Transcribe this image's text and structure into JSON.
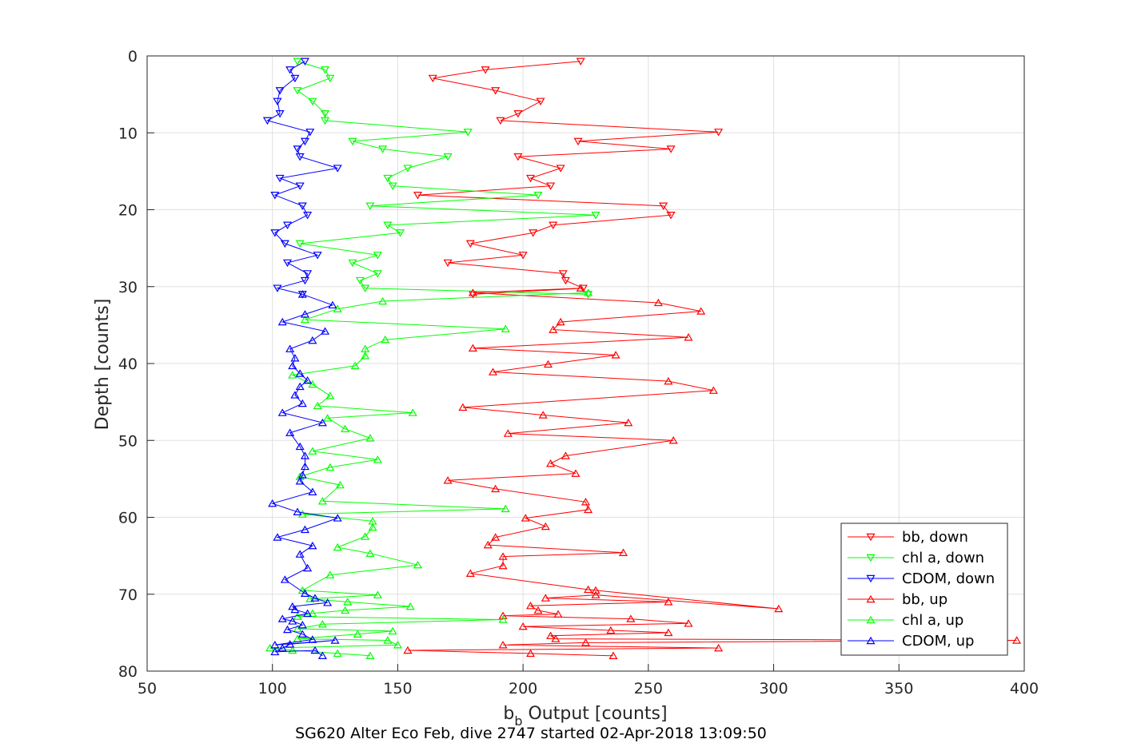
{
  "chart_data": {
    "type": "line",
    "xlabel_main": "b",
    "xlabel_sub": "b",
    "xlabel_rest": " Output [counts]",
    "ylabel": "Depth [counts]",
    "caption": "SG620 Alter Eco Feb, dive 2747 started 02-Apr-2018 13:09:50",
    "xlim": [
      50,
      400
    ],
    "ylim": [
      0,
      80
    ],
    "y_reversed": true,
    "grid": true,
    "x_ticks": [
      "50",
      "100",
      "150",
      "200",
      "250",
      "300",
      "350",
      "400"
    ],
    "y_ticks": [
      "0",
      "10",
      "20",
      "30",
      "40",
      "50",
      "60",
      "70",
      "80"
    ],
    "legend_position": "bottom-right",
    "colors": {
      "bb": "#ff0000",
      "chl": "#00ff00",
      "cdom": "#0000ff"
    },
    "series": [
      {
        "name": "bb, down",
        "color": "#ff0000",
        "marker": "triangle-down",
        "points": [
          [
            223,
            0.7
          ],
          [
            185,
            1.8
          ],
          [
            164,
            2.9
          ],
          [
            189,
            4.5
          ],
          [
            207,
            5.9
          ],
          [
            198,
            7.5
          ],
          [
            191,
            8.4
          ],
          [
            278,
            9.9
          ],
          [
            222,
            11.1
          ],
          [
            259,
            12.1
          ],
          [
            198,
            13.1
          ],
          [
            215,
            14.6
          ],
          [
            203,
            15.9
          ],
          [
            211,
            16.9
          ],
          [
            158,
            18.1
          ],
          [
            256,
            19.5
          ],
          [
            259,
            20.7
          ],
          [
            212,
            22.0
          ],
          [
            204,
            23.0
          ],
          [
            179,
            24.4
          ],
          [
            200,
            25.9
          ],
          [
            170,
            26.9
          ],
          [
            216,
            28.3
          ],
          [
            217,
            29.2
          ],
          [
            224,
            30.2
          ],
          [
            180,
            31.0
          ]
        ]
      },
      {
        "name": "chl a, down",
        "color": "#00ff00",
        "marker": "triangle-down",
        "points": [
          [
            110,
            0.7
          ],
          [
            121,
            1.8
          ],
          [
            123,
            2.9
          ],
          [
            110,
            4.5
          ],
          [
            116,
            5.9
          ],
          [
            121,
            7.5
          ],
          [
            121,
            8.4
          ],
          [
            178,
            9.9
          ],
          [
            132,
            11.1
          ],
          [
            144,
            12.1
          ],
          [
            170,
            13.1
          ],
          [
            154,
            14.6
          ],
          [
            146,
            15.9
          ],
          [
            148,
            16.9
          ],
          [
            206,
            18.1
          ],
          [
            139,
            19.5
          ],
          [
            229,
            20.7
          ],
          [
            146,
            22.0
          ],
          [
            151,
            23.0
          ],
          [
            111,
            24.4
          ],
          [
            142,
            25.9
          ],
          [
            132,
            26.9
          ],
          [
            142,
            28.3
          ],
          [
            135,
            29.2
          ],
          [
            137,
            30.2
          ],
          [
            226,
            31.0
          ]
        ]
      },
      {
        "name": "CDOM, down",
        "color": "#0000ff",
        "marker": "triangle-down",
        "points": [
          [
            113,
            0.7
          ],
          [
            107,
            1.8
          ],
          [
            109,
            2.9
          ],
          [
            103,
            4.5
          ],
          [
            102,
            5.9
          ],
          [
            103,
            7.5
          ],
          [
            98,
            8.4
          ],
          [
            115,
            9.9
          ],
          [
            113,
            11.1
          ],
          [
            110,
            12.1
          ],
          [
            111,
            13.1
          ],
          [
            126,
            14.6
          ],
          [
            103,
            15.9
          ],
          [
            111,
            16.9
          ],
          [
            101,
            18.1
          ],
          [
            112,
            19.5
          ],
          [
            114,
            20.7
          ],
          [
            106,
            22.0
          ],
          [
            101,
            23.0
          ],
          [
            105,
            24.4
          ],
          [
            118,
            25.9
          ],
          [
            106,
            26.9
          ],
          [
            114,
            28.3
          ],
          [
            113,
            29.2
          ],
          [
            102,
            30.2
          ],
          [
            112,
            31.0
          ]
        ]
      },
      {
        "name": "bb, up",
        "color": "#ff0000",
        "marker": "triangle-up",
        "points": [
          [
            236,
            78.0
          ],
          [
            203,
            77.7
          ],
          [
            154,
            77.3
          ],
          [
            278,
            77.0
          ],
          [
            192,
            76.6
          ],
          [
            225,
            76.3
          ],
          [
            397,
            76.0
          ],
          [
            213,
            75.8
          ],
          [
            211,
            75.4
          ],
          [
            258,
            75.0
          ],
          [
            235,
            74.7
          ],
          [
            200,
            74.2
          ],
          [
            266,
            73.8
          ],
          [
            243,
            73.2
          ],
          [
            192,
            72.8
          ],
          [
            214,
            72.6
          ],
          [
            206,
            72.1
          ],
          [
            203,
            71.5
          ],
          [
            258,
            71.0
          ],
          [
            209,
            70.5
          ],
          [
            229,
            70.1
          ],
          [
            302,
            71.9
          ],
          [
            229,
            69.5
          ],
          [
            226,
            69.4
          ],
          [
            179,
            67.3
          ],
          [
            192,
            66.3
          ],
          [
            192,
            65.1
          ],
          [
            240,
            64.6
          ],
          [
            186,
            63.6
          ],
          [
            189,
            62.6
          ],
          [
            209,
            61.2
          ],
          [
            201,
            60.1
          ],
          [
            226,
            59.0
          ],
          [
            225,
            58.0
          ],
          [
            189,
            56.3
          ],
          [
            170,
            55.2
          ],
          [
            221,
            54.3
          ],
          [
            211,
            53.0
          ],
          [
            217,
            52.0
          ],
          [
            260,
            50.0
          ],
          [
            194,
            49.1
          ],
          [
            242,
            47.7
          ],
          [
            208,
            46.7
          ],
          [
            176,
            45.7
          ],
          [
            276,
            43.5
          ],
          [
            258,
            42.3
          ],
          [
            188,
            41.1
          ],
          [
            210,
            40.1
          ],
          [
            237,
            38.9
          ],
          [
            180,
            38.0
          ],
          [
            266,
            36.6
          ],
          [
            212,
            35.6
          ],
          [
            215,
            34.6
          ],
          [
            271,
            33.2
          ],
          [
            254,
            32.1
          ],
          [
            180,
            30.8
          ],
          [
            223,
            30.2
          ]
        ]
      },
      {
        "name": "chl a, up",
        "color": "#00ff00",
        "marker": "triangle-up",
        "points": [
          [
            139,
            78.0
          ],
          [
            126,
            77.7
          ],
          [
            108,
            77.3
          ],
          [
            99,
            77.0
          ],
          [
            150,
            76.6
          ],
          [
            146,
            76.0
          ],
          [
            110,
            75.8
          ],
          [
            134,
            75.2
          ],
          [
            148,
            74.8
          ],
          [
            110,
            74.5
          ],
          [
            120,
            73.9
          ],
          [
            192,
            73.3
          ],
          [
            110,
            72.9
          ],
          [
            116,
            72.5
          ],
          [
            129,
            72.1
          ],
          [
            155,
            71.6
          ],
          [
            130,
            71.0
          ],
          [
            115,
            70.6
          ],
          [
            142,
            70.1
          ],
          [
            112,
            69.5
          ],
          [
            123,
            67.5
          ],
          [
            158,
            66.2
          ],
          [
            139,
            64.7
          ],
          [
            126,
            63.9
          ],
          [
            137,
            62.5
          ],
          [
            140,
            61.3
          ],
          [
            140,
            60.5
          ],
          [
            112,
            59.6
          ],
          [
            193,
            58.9
          ],
          [
            120,
            57.9
          ],
          [
            127,
            55.8
          ],
          [
            111,
            54.7
          ],
          [
            123,
            53.5
          ],
          [
            142,
            52.5
          ],
          [
            116,
            51.4
          ],
          [
            139,
            49.7
          ],
          [
            129,
            48.5
          ],
          [
            122,
            47.1
          ],
          [
            156,
            46.4
          ],
          [
            118,
            45.5
          ],
          [
            123,
            44.2
          ],
          [
            116,
            42.7
          ],
          [
            108,
            41.5
          ],
          [
            133,
            40.3
          ],
          [
            137,
            39.0
          ],
          [
            137,
            38.1
          ],
          [
            145,
            36.9
          ],
          [
            193,
            35.5
          ],
          [
            113,
            34.3
          ],
          [
            126,
            32.9
          ],
          [
            144,
            31.9
          ],
          [
            226,
            30.8
          ]
        ]
      },
      {
        "name": "CDOM, up",
        "color": "#0000ff",
        "marker": "triangle-up",
        "points": [
          [
            120,
            78.0
          ],
          [
            117,
            77.3
          ],
          [
            101,
            77.5
          ],
          [
            104,
            77.0
          ],
          [
            107,
            76.5
          ],
          [
            125,
            76.0
          ],
          [
            101,
            76.6
          ],
          [
            116,
            75.9
          ],
          [
            112,
            75.2
          ],
          [
            106,
            74.6
          ],
          [
            112,
            74.0
          ],
          [
            108,
            73.5
          ],
          [
            104,
            73.2
          ],
          [
            114,
            72.5
          ],
          [
            109,
            72.0
          ],
          [
            108,
            71.6
          ],
          [
            122,
            71.1
          ],
          [
            117,
            70.5
          ],
          [
            113,
            69.9
          ],
          [
            105,
            68.1
          ],
          [
            114,
            66.6
          ],
          [
            111,
            64.8
          ],
          [
            116,
            63.7
          ],
          [
            102,
            62.6
          ],
          [
            113,
            61.6
          ],
          [
            126,
            60.1
          ],
          [
            110,
            59.3
          ],
          [
            100,
            58.2
          ],
          [
            116,
            56.7
          ],
          [
            111,
            55.3
          ],
          [
            112,
            54.5
          ],
          [
            113,
            53.4
          ],
          [
            113,
            52.0
          ],
          [
            111,
            50.8
          ],
          [
            107,
            49.0
          ],
          [
            120,
            47.7
          ],
          [
            104,
            46.4
          ],
          [
            112,
            45.2
          ],
          [
            109,
            44.1
          ],
          [
            111,
            43.0
          ],
          [
            114,
            42.2
          ],
          [
            111,
            41.3
          ],
          [
            108,
            40.3
          ],
          [
            109,
            39.3
          ],
          [
            107,
            38.1
          ],
          [
            116,
            37.0
          ],
          [
            121,
            35.8
          ],
          [
            104,
            34.6
          ],
          [
            113,
            33.6
          ],
          [
            124,
            32.4
          ],
          [
            112,
            31.0
          ]
        ]
      }
    ]
  }
}
